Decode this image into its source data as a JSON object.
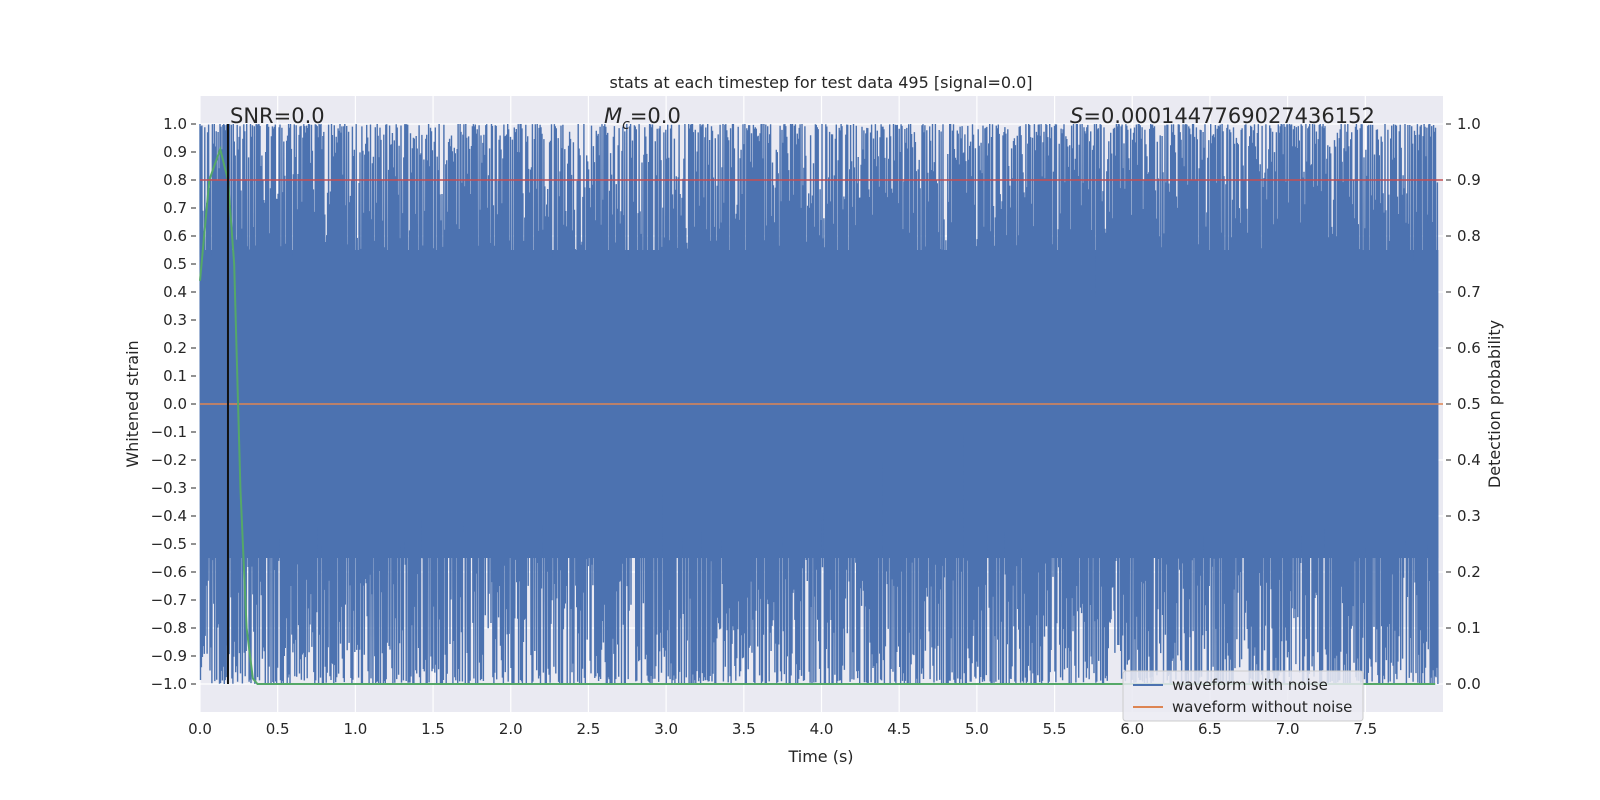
{
  "chart_data": {
    "type": "line",
    "title": "stats at each timestep for test data 495 [signal=0.0]",
    "xlabel": "Time (s)",
    "ylabel_left": "Whitened strain",
    "ylabel_right": "Detection probability",
    "xlim": [
      0.0,
      8.0
    ],
    "ylim_left": [
      -1.1,
      1.1
    ],
    "ylim_right": [
      -0.05,
      1.05
    ],
    "x_ticks": [
      "0.0",
      "0.5",
      "1.0",
      "1.5",
      "2.0",
      "2.5",
      "3.0",
      "3.5",
      "4.0",
      "4.5",
      "5.0",
      "5.5",
      "6.0",
      "6.5",
      "7.0",
      "7.5"
    ],
    "y_left_ticks": [
      "1.0",
      "0.9",
      "0.8",
      "0.7",
      "0.6",
      "0.5",
      "0.4",
      "0.3",
      "0.2",
      "0.1",
      "0.0",
      "−0.1",
      "−0.2",
      "−0.3",
      "−0.4",
      "−0.5",
      "−0.6",
      "−0.7",
      "−0.8",
      "−0.9",
      "−1.0"
    ],
    "y_right_ticks": [
      "1.0",
      "0.9",
      "0.8",
      "0.7",
      "0.6",
      "0.5",
      "0.4",
      "0.3",
      "0.2",
      "0.1",
      "0.0"
    ],
    "grid": true,
    "legend_position": "lower-right",
    "annotations": {
      "snr": "SNR=0.0",
      "mc_symbol": "M",
      "mc_sub": "c",
      "mc_value": "=0.0",
      "s_symbol": "S",
      "s_value": "=0.0001447769027436152"
    },
    "vertical_marker_x": 0.18,
    "series": [
      {
        "name": "waveform with noise",
        "color": "#4c72b0",
        "axis": "left",
        "description_range": [
          -1.0,
          1.0
        ]
      },
      {
        "name": "waveform without noise",
        "color": "#dd8452",
        "axis": "left",
        "x": [
          0.0,
          8.0
        ],
        "y": [
          0.0,
          0.0
        ]
      },
      {
        "axis": "right",
        "color": "#55a868",
        "x": [
          0.0,
          0.06,
          0.13,
          0.18,
          0.22,
          0.26,
          0.3,
          0.34,
          0.37,
          0.5,
          1.0,
          2.0,
          3.0,
          4.0,
          5.0,
          6.0,
          7.0,
          7.95
        ],
        "y": [
          0.72,
          0.9,
          0.955,
          0.9,
          0.75,
          0.35,
          0.1,
          0.01,
          0.0,
          0.0,
          0.0,
          0.0,
          0.0,
          0.0,
          0.0,
          0.0,
          0.0,
          0.0
        ]
      },
      {
        "axis": "right",
        "color": "#c44e52",
        "x": [
          0.0,
          8.0
        ],
        "y": [
          0.9,
          0.9
        ]
      }
    ]
  }
}
